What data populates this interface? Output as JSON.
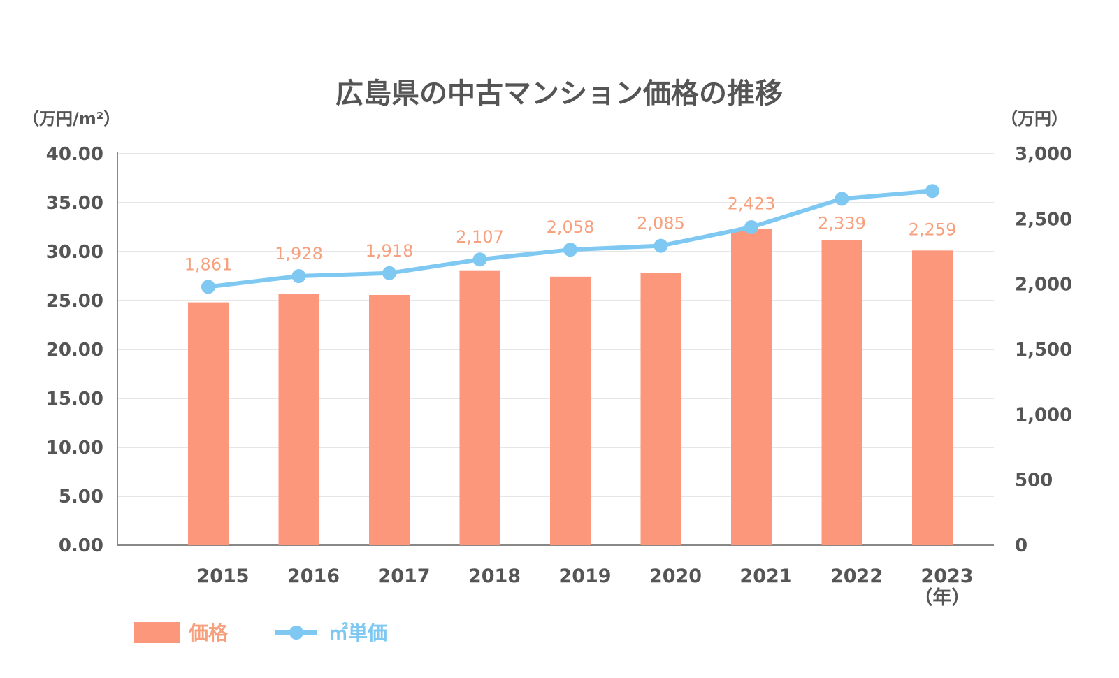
{
  "chart_data": {
    "type": "bar",
    "title": "広島県の中古マンション価格の推移",
    "left_unit": "（万円/m²）",
    "right_unit": "（万円）",
    "x_unit": "（年）",
    "categories": [
      "2015",
      "2016",
      "2017",
      "2018",
      "2019",
      "2020",
      "2021",
      "2022",
      "2023"
    ],
    "left_axis": {
      "min": 0,
      "max": 40,
      "ticks": [
        0,
        5,
        10,
        15,
        20,
        25,
        30,
        35,
        40
      ],
      "tick_labels": [
        "0.00",
        "5.00",
        "10.00",
        "15.00",
        "20.00",
        "25.00",
        "30.00",
        "35.00",
        "40.00"
      ]
    },
    "right_axis": {
      "min": 0,
      "max": 3000,
      "ticks": [
        0,
        500,
        1000,
        1500,
        2000,
        2500,
        3000
      ],
      "tick_labels": [
        "0",
        "500",
        "1,000",
        "1,500",
        "2,000",
        "2,500",
        "3,000"
      ]
    },
    "series": [
      {
        "name": "価格",
        "kind": "bar",
        "axis": "right",
        "color": "#fd977b",
        "values": [
          1861,
          1928,
          1918,
          2107,
          2058,
          2085,
          2423,
          2339,
          2259
        ],
        "labels": [
          "1,861",
          "1,928",
          "1,918",
          "2,107",
          "2,058",
          "2,085",
          "2,423",
          "2,339",
          "2,259"
        ]
      },
      {
        "name": "㎡単価",
        "kind": "line",
        "axis": "left",
        "color": "#7ec8f2",
        "values": [
          26.4,
          27.5,
          27.8,
          29.2,
          30.2,
          30.6,
          32.5,
          35.4,
          36.2
        ]
      }
    ],
    "grid": true,
    "legend": "bottom-left"
  }
}
